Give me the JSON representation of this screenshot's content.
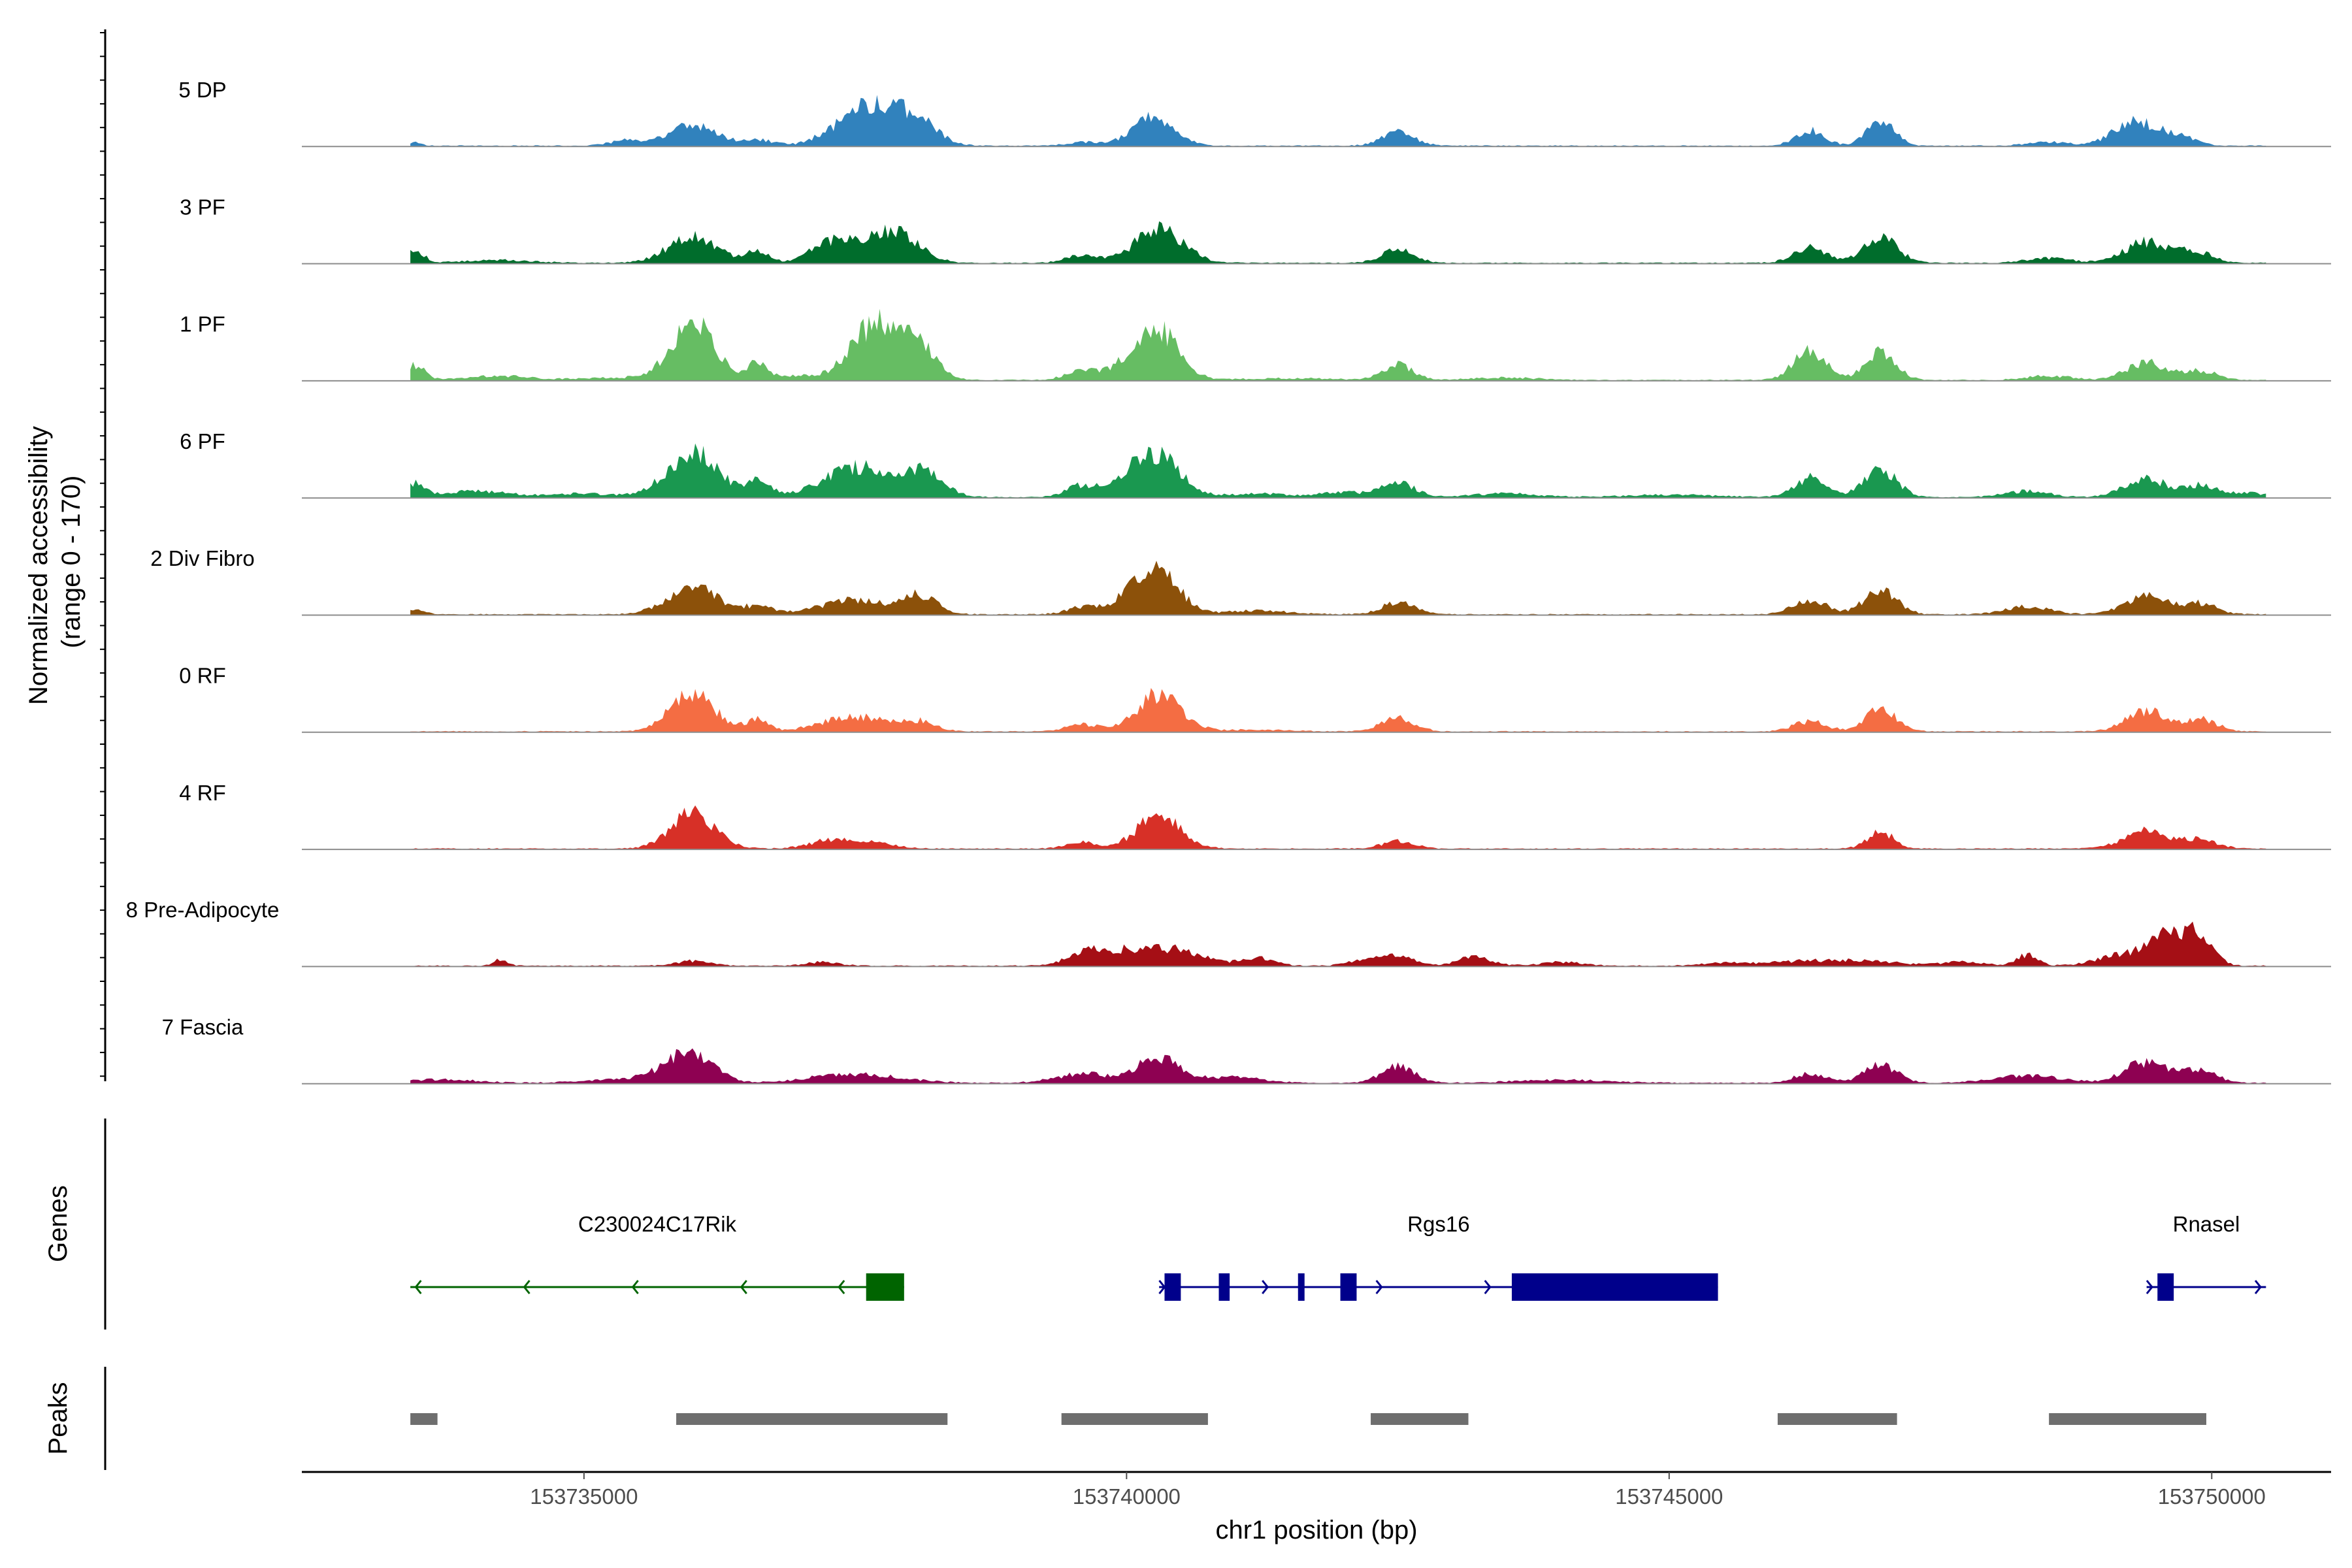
{
  "chart_data": {
    "type": "area",
    "title": "",
    "ylabel": "Normalized accessibility",
    "ylabel_range": "(range 0 - 170)",
    "ylim": [
      0,
      170
    ],
    "xlabel": "chr1 position (bp)",
    "xlim": [
      153732400,
      153751100
    ],
    "x_ticks": [
      153735000,
      153740000,
      153745000,
      153750000
    ],
    "x_tick_labels": [
      "153735000",
      "153740000",
      "153745000",
      "153750000"
    ],
    "data_range": [
      153733400,
      153750500
    ],
    "tracks": [
      {
        "name": "5 DP",
        "color": "#3182bd",
        "peaks": [
          [
            153733450,
            5,
            60
          ],
          [
            153735400,
            9,
            150
          ],
          [
            153736000,
            35,
            210
          ],
          [
            153736600,
            10,
            150
          ],
          [
            153737300,
            18,
            180
          ],
          [
            153737700,
            70,
            230
          ],
          [
            153738100,
            32,
            180
          ],
          [
            153739600,
            6,
            150
          ],
          [
            153740250,
            48,
            190
          ],
          [
            153742500,
            22,
            150
          ],
          [
            153746300,
            26,
            130
          ],
          [
            153746950,
            38,
            130
          ],
          [
            153748500,
            6,
            200
          ],
          [
            153749300,
            40,
            200
          ],
          [
            153749700,
            15,
            150
          ]
        ]
      },
      {
        "name": "3 PF",
        "color": "#006d2c",
        "peaks": [
          [
            153733450,
            20,
            80
          ],
          [
            153734200,
            5,
            300
          ],
          [
            153736000,
            45,
            220
          ],
          [
            153736600,
            19,
            100
          ],
          [
            153737300,
            35,
            200
          ],
          [
            153737850,
            55,
            220
          ],
          [
            153739600,
            13,
            150
          ],
          [
            153740300,
            56,
            220
          ],
          [
            153742500,
            21,
            150
          ],
          [
            153746300,
            25,
            150
          ],
          [
            153746950,
            45,
            150
          ],
          [
            153748500,
            8,
            200
          ],
          [
            153749400,
            35,
            200
          ],
          [
            153749850,
            18,
            150
          ]
        ]
      },
      {
        "name": "1 PF",
        "color": "#66bd63",
        "peaks": [
          [
            153733450,
            25,
            80
          ],
          [
            153734200,
            7,
            300
          ],
          [
            153735300,
            4,
            300
          ],
          [
            153736000,
            95,
            200
          ],
          [
            153736600,
            30,
            100
          ],
          [
            153737000,
            7,
            150
          ],
          [
            153737700,
            95,
            230
          ],
          [
            153738100,
            50,
            150
          ],
          [
            153739600,
            18,
            150
          ],
          [
            153740000,
            20,
            150
          ],
          [
            153740300,
            80,
            190
          ],
          [
            153741500,
            3,
            400
          ],
          [
            153742500,
            25,
            140
          ],
          [
            153743500,
            4,
            300
          ],
          [
            153746300,
            50,
            150
          ],
          [
            153746950,
            45,
            140
          ],
          [
            153748500,
            7,
            200
          ],
          [
            153749400,
            30,
            180
          ],
          [
            153749900,
            15,
            150
          ]
        ]
      },
      {
        "name": "6 PF",
        "color": "#1a9850",
        "peaks": [
          [
            153733450,
            22,
            80
          ],
          [
            153734000,
            10,
            300
          ],
          [
            153735000,
            6,
            300
          ],
          [
            153736000,
            75,
            230
          ],
          [
            153736600,
            25,
            120
          ],
          [
            153737500,
            50,
            300
          ],
          [
            153738100,
            40,
            200
          ],
          [
            153739600,
            20,
            150
          ],
          [
            153740000,
            22,
            150
          ],
          [
            153740300,
            70,
            200
          ],
          [
            153741200,
            6,
            300
          ],
          [
            153742000,
            8,
            200
          ],
          [
            153742500,
            25,
            150
          ],
          [
            153743500,
            6,
            300
          ],
          [
            153745000,
            4,
            400
          ],
          [
            153746300,
            32,
            150
          ],
          [
            153746950,
            45,
            150
          ],
          [
            153748300,
            10,
            200
          ],
          [
            153749400,
            30,
            200
          ],
          [
            153749900,
            18,
            150
          ],
          [
            153750300,
            7,
            200
          ]
        ]
      },
      {
        "name": "2 Div Fibro",
        "color": "#8c510a",
        "peaks": [
          [
            153733450,
            8,
            80
          ],
          [
            153736000,
            45,
            230
          ],
          [
            153736600,
            12,
            150
          ],
          [
            153737500,
            25,
            300
          ],
          [
            153738100,
            30,
            150
          ],
          [
            153739600,
            12,
            150
          ],
          [
            153740000,
            22,
            150
          ],
          [
            153740300,
            75,
            180
          ],
          [
            153741200,
            6,
            300
          ],
          [
            153742500,
            20,
            150
          ],
          [
            153746300,
            25,
            150
          ],
          [
            153746950,
            40,
            150
          ],
          [
            153748300,
            13,
            200
          ],
          [
            153749400,
            30,
            200
          ],
          [
            153749900,
            18,
            150
          ]
        ]
      },
      {
        "name": "0 RF",
        "color": "#f46d43",
        "peaks": [
          [
            153736000,
            65,
            200
          ],
          [
            153736600,
            22,
            100
          ],
          [
            153737500,
            25,
            300
          ],
          [
            153738100,
            15,
            150
          ],
          [
            153739600,
            12,
            150
          ],
          [
            153740300,
            62,
            200
          ],
          [
            153741200,
            3,
            300
          ],
          [
            153742500,
            23,
            150
          ],
          [
            153746300,
            17,
            150
          ],
          [
            153746950,
            40,
            140
          ],
          [
            153749400,
            35,
            180
          ],
          [
            153749900,
            20,
            150
          ]
        ]
      },
      {
        "name": "4 RF",
        "color": "#d73027",
        "peaks": [
          [
            153736000,
            60,
            200
          ],
          [
            153737300,
            15,
            200
          ],
          [
            153737700,
            8,
            200
          ],
          [
            153739600,
            10,
            150
          ],
          [
            153740300,
            55,
            200
          ],
          [
            153742500,
            12,
            150
          ],
          [
            153746950,
            28,
            120
          ],
          [
            153749400,
            30,
            200
          ],
          [
            153749900,
            15,
            150
          ]
        ]
      },
      {
        "name": "8 Pre-Adipocyte",
        "color": "#a50f15",
        "peaks": [
          [
            153734230,
            10,
            60
          ],
          [
            153736000,
            8,
            150
          ],
          [
            153737200,
            6,
            150
          ],
          [
            153739600,
            15,
            150
          ],
          [
            153740000,
            25,
            300
          ],
          [
            153740500,
            20,
            250
          ],
          [
            153741200,
            14,
            150
          ],
          [
            153742200,
            10,
            150
          ],
          [
            153742500,
            16,
            150
          ],
          [
            153743200,
            14,
            150
          ],
          [
            153744000,
            6,
            200
          ],
          [
            153745500,
            5,
            200
          ],
          [
            153746200,
            7,
            300
          ],
          [
            153746800,
            8,
            300
          ],
          [
            153747700,
            6,
            200
          ],
          [
            153748300,
            18,
            100
          ],
          [
            153749100,
            15,
            200
          ],
          [
            153749600,
            55,
            200
          ],
          [
            153749900,
            40,
            120
          ]
        ]
      },
      {
        "name": "7 Fascia",
        "color": "#8e0152",
        "peaks": [
          [
            153733700,
            6,
            300
          ],
          [
            153735200,
            4,
            300
          ],
          [
            153735800,
            15,
            250
          ],
          [
            153736000,
            40,
            200
          ],
          [
            153737500,
            15,
            400
          ],
          [
            153739600,
            15,
            250
          ],
          [
            153740300,
            42,
            200
          ],
          [
            153741000,
            10,
            250
          ],
          [
            153742500,
            28,
            150
          ],
          [
            153744000,
            5,
            400
          ],
          [
            153746300,
            15,
            150
          ],
          [
            153746950,
            30,
            150
          ],
          [
            153748300,
            12,
            300
          ],
          [
            153749400,
            35,
            200
          ],
          [
            153749900,
            20,
            150
          ]
        ]
      }
    ],
    "genes_title": "Genes",
    "genes": [
      {
        "name": "C230024C17Rik",
        "color": "#006400",
        "strand": "-",
        "start": 153733400,
        "end": 153737950,
        "exons": [
          [
            153737600,
            153737950
          ]
        ],
        "chevrons": [
          153733450,
          153734450,
          153735450,
          153736450,
          153737350
        ]
      },
      {
        "name": "Rgs16",
        "color": "#00008b",
        "strand": "+",
        "start": 153740300,
        "end": 153745450,
        "exons": [
          [
            153740350,
            153740500
          ],
          [
            153740850,
            153740950
          ],
          [
            153741580,
            153741640
          ],
          [
            153741970,
            153742120
          ],
          [
            153743550,
            153745450
          ]
        ],
        "chevrons": [
          153740350,
          153741300,
          153742350,
          153743350
        ]
      },
      {
        "name": "Rnasel",
        "color": "#00008b",
        "strand": "+",
        "start": 153749400,
        "end": 153750500,
        "exons": [
          [
            153749500,
            153749650
          ]
        ],
        "chevrons": [
          153749450,
          153750450
        ]
      }
    ],
    "peaks_title": "Peaks",
    "peak_regions": [
      [
        153733400,
        153733650
      ],
      [
        153735850,
        153738350
      ],
      [
        153739400,
        153740750
      ],
      [
        153742250,
        153743150
      ],
      [
        153746000,
        153747100
      ],
      [
        153748500,
        153749950
      ]
    ]
  }
}
